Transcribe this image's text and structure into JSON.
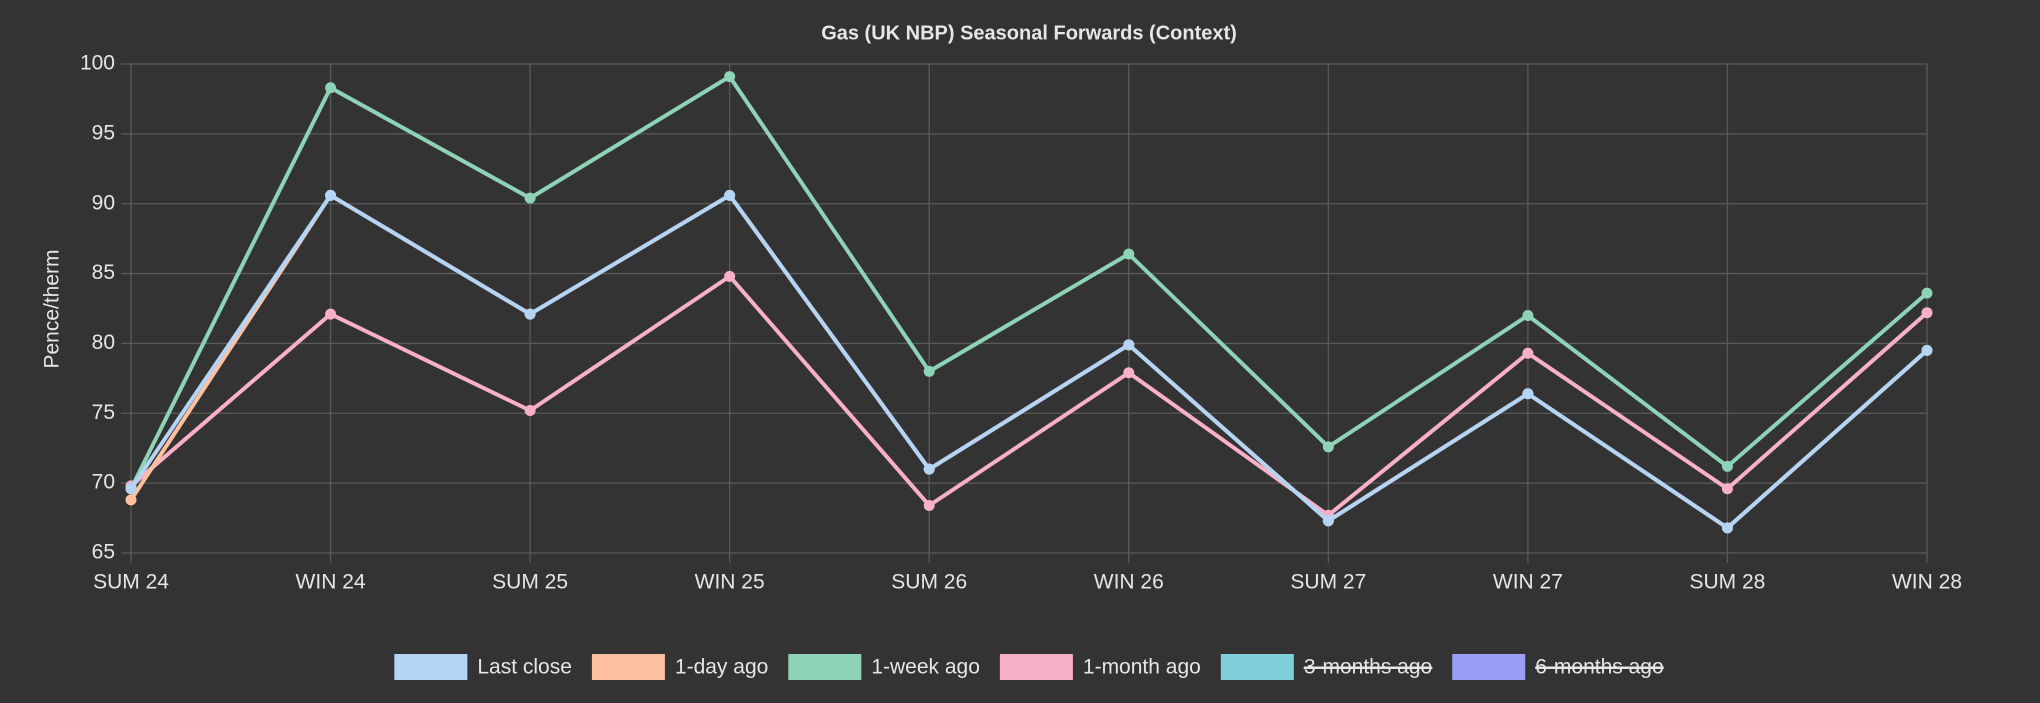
{
  "chart_data": {
    "type": "line",
    "title": "Gas (UK NBP) Seasonal Forwards (Context)",
    "y_label": "Pence/therm",
    "categories": [
      "SUM 24",
      "WIN 24",
      "SUM 25",
      "WIN 25",
      "SUM 26",
      "WIN 26",
      "SUM 27",
      "WIN 27",
      "SUM 28",
      "WIN 28"
    ],
    "series": [
      {
        "name": "Last close",
        "color": "#b3d4f5",
        "values": [
          69.6,
          90.6,
          82.1,
          90.6,
          71.0,
          79.9,
          67.3,
          76.4,
          66.8,
          79.5
        ]
      },
      {
        "name": "1-day ago",
        "color": "#ffc09f",
        "values": [
          68.8,
          90.6,
          82.1,
          90.6,
          71.0,
          79.9,
          67.3,
          76.4,
          66.8,
          79.5
        ]
      },
      {
        "name": "1-week ago",
        "color": "#8fd3b6",
        "values": [
          69.6,
          98.3,
          90.4,
          99.1,
          78.0,
          86.4,
          72.6,
          82.0,
          71.2,
          83.6
        ]
      },
      {
        "name": "1-month ago",
        "color": "#f7b0c8",
        "values": [
          69.8,
          82.1,
          75.2,
          84.8,
          68.4,
          77.9,
          67.7,
          79.3,
          69.6,
          82.2
        ]
      },
      {
        "name": "3-months ago",
        "color": "#80d0dc",
        "hidden": true,
        "values": [
          null,
          null,
          null,
          null,
          null,
          null,
          null,
          null,
          null,
          null
        ]
      },
      {
        "name": "6-months ago",
        "color": "#9b9ef5",
        "hidden": true,
        "values": [
          null,
          null,
          null,
          null,
          null,
          null,
          null,
          null,
          null,
          null
        ]
      }
    ],
    "ylim": [
      65,
      100
    ],
    "yticks": [
      65,
      70,
      75,
      80,
      85,
      90,
      95,
      100
    ],
    "grid": true,
    "legend": "bottom"
  }
}
